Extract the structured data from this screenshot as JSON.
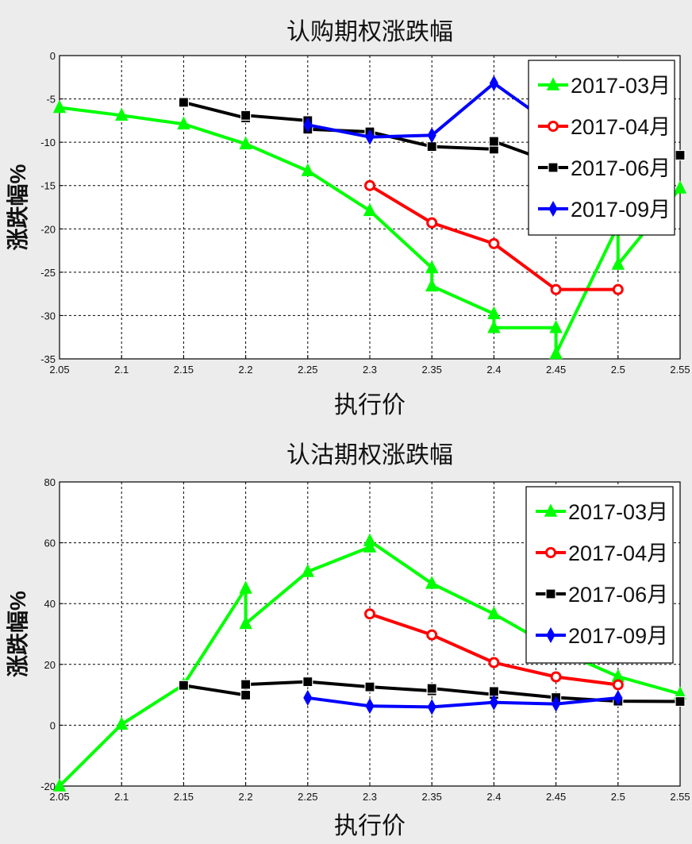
{
  "chart_data": [
    {
      "type": "line",
      "title": "认购期权涨跌幅",
      "xlabel": "执行价",
      "ylabel": "涨跌幅%",
      "xlim": [
        2.05,
        2.55
      ],
      "ylim": [
        -35,
        0
      ],
      "xticks": [
        "2.05",
        "2.1",
        "2.15",
        "2.2",
        "2.25",
        "2.3",
        "2.35",
        "2.4",
        "2.45",
        "2.5",
        "2.55"
      ],
      "yticks": [
        "0",
        "-5",
        "-10",
        "-15",
        "-20",
        "-25",
        "-30",
        "-35"
      ],
      "grid": true,
      "legend_position": "top-right",
      "series": [
        {
          "name": "2017-03月",
          "color": "#00ff00",
          "marker": "triangle",
          "points": [
            [
              2.05,
              -6.0
            ],
            [
              2.1,
              -6.9
            ],
            [
              2.15,
              -7.9
            ],
            [
              2.2,
              -10.2
            ],
            [
              2.25,
              -13.3
            ],
            [
              2.3,
              -17.9
            ],
            [
              2.35,
              -24.5
            ],
            [
              2.35,
              -26.6
            ],
            [
              2.4,
              -29.8
            ],
            [
              2.4,
              -31.4
            ],
            [
              2.45,
              -31.4
            ],
            [
              2.45,
              -34.4
            ],
            [
              2.5,
              -19.6
            ],
            [
              2.5,
              -24.1
            ],
            [
              2.55,
              -15.3
            ]
          ]
        },
        {
          "name": "2017-04月",
          "color": "#ff0000",
          "marker": "circle",
          "points": [
            [
              2.3,
              -15.0
            ],
            [
              2.35,
              -19.3
            ],
            [
              2.4,
              -21.7
            ],
            [
              2.45,
              -27.0
            ],
            [
              2.5,
              -27.0
            ]
          ]
        },
        {
          "name": "2017-06月",
          "color": "#000000",
          "marker": "square",
          "points": [
            [
              2.15,
              -5.4
            ],
            [
              2.2,
              -7.2
            ],
            [
              2.2,
              -6.9
            ],
            [
              2.25,
              -7.5
            ],
            [
              2.25,
              -8.5
            ],
            [
              2.3,
              -8.8
            ],
            [
              2.35,
              -10.5
            ],
            [
              2.4,
              -10.8
            ],
            [
              2.4,
              -9.9
            ],
            [
              2.45,
              -12.5
            ],
            [
              2.5,
              -12.0
            ],
            [
              2.55,
              -11.5
            ]
          ]
        },
        {
          "name": "2017-09月",
          "color": "#0000ff",
          "marker": "diamond",
          "points": [
            [
              2.25,
              -8.0
            ],
            [
              2.3,
              -9.4
            ],
            [
              2.35,
              -9.2
            ],
            [
              2.4,
              -3.2
            ],
            [
              2.45,
              -8.3
            ]
          ]
        }
      ]
    },
    {
      "type": "line",
      "title": "认沽期权涨跌幅",
      "xlabel": "执行价",
      "ylabel": "涨跌幅%",
      "xlim": [
        2.05,
        2.55
      ],
      "ylim": [
        -20,
        80
      ],
      "xticks": [
        "2.05",
        "2.1",
        "2.15",
        "2.2",
        "2.25",
        "2.3",
        "2.35",
        "2.4",
        "2.45",
        "2.5",
        "2.55"
      ],
      "yticks": [
        "80",
        "60",
        "40",
        "20",
        "0",
        "-20"
      ],
      "grid": true,
      "legend_position": "top-right",
      "series": [
        {
          "name": "2017-03月",
          "color": "#00ff00",
          "marker": "triangle",
          "points": [
            [
              2.05,
              -20.0
            ],
            [
              2.1,
              0.3
            ],
            [
              2.15,
              13.3
            ],
            [
              2.2,
              45.0
            ],
            [
              2.2,
              33.4
            ],
            [
              2.25,
              50.5
            ],
            [
              2.3,
              58.6
            ],
            [
              2.3,
              60.6
            ],
            [
              2.35,
              46.6
            ],
            [
              2.4,
              36.6
            ],
            [
              2.45,
              25.0
            ],
            [
              2.5,
              16.0
            ],
            [
              2.55,
              10.3
            ]
          ]
        },
        {
          "name": "2017-04月",
          "color": "#ff0000",
          "marker": "circle",
          "points": [
            [
              2.3,
              36.6
            ],
            [
              2.35,
              29.7
            ],
            [
              2.4,
              20.6
            ],
            [
              2.45,
              15.9
            ],
            [
              2.5,
              13.3
            ]
          ]
        },
        {
          "name": "2017-06月",
          "color": "#000000",
          "marker": "square",
          "points": [
            [
              2.15,
              13.1
            ],
            [
              2.2,
              9.9
            ],
            [
              2.2,
              13.4
            ],
            [
              2.25,
              14.3
            ],
            [
              2.3,
              12.6
            ],
            [
              2.35,
              11.3
            ],
            [
              2.35,
              12.1
            ],
            [
              2.4,
              10.1
            ],
            [
              2.4,
              11.1
            ],
            [
              2.45,
              9.1
            ],
            [
              2.5,
              7.9
            ],
            [
              2.55,
              7.8
            ]
          ]
        },
        {
          "name": "2017-09月",
          "color": "#0000ff",
          "marker": "diamond",
          "points": [
            [
              2.25,
              9.0
            ],
            [
              2.3,
              6.3
            ],
            [
              2.35,
              6.0
            ],
            [
              2.4,
              7.5
            ],
            [
              2.45,
              7.0
            ],
            [
              2.5,
              9.0
            ]
          ]
        }
      ]
    }
  ]
}
